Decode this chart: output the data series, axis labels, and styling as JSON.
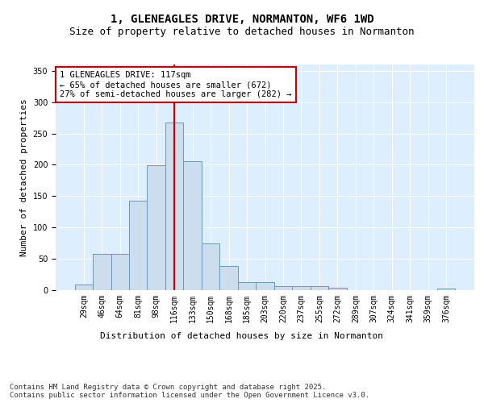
{
  "title_line1": "1, GLENEAGLES DRIVE, NORMANTON, WF6 1WD",
  "title_line2": "Size of property relative to detached houses in Normanton",
  "xlabel": "Distribution of detached houses by size in Normanton",
  "ylabel": "Number of detached properties",
  "bar_labels": [
    "29sqm",
    "46sqm",
    "64sqm",
    "81sqm",
    "98sqm",
    "116sqm",
    "133sqm",
    "150sqm",
    "168sqm",
    "185sqm",
    "203sqm",
    "220sqm",
    "237sqm",
    "255sqm",
    "272sqm",
    "289sqm",
    "307sqm",
    "324sqm",
    "341sqm",
    "359sqm",
    "376sqm"
  ],
  "bar_values": [
    9,
    58,
    58,
    143,
    199,
    267,
    206,
    74,
    39,
    13,
    13,
    7,
    7,
    7,
    4,
    0,
    0,
    0,
    0,
    0,
    2
  ],
  "bar_color": "#ccdded",
  "bar_edge_color": "#6699bb",
  "background_color": "#ddeeff",
  "vline_color": "#cc0000",
  "vline_x_index": 5,
  "annotation_text": "1 GLENEAGLES DRIVE: 117sqm\n← 65% of detached houses are smaller (672)\n27% of semi-detached houses are larger (282) →",
  "annotation_box_color": "#ffffff",
  "annotation_box_edge": "#cc0000",
  "ylim": [
    0,
    360
  ],
  "yticks": [
    0,
    50,
    100,
    150,
    200,
    250,
    300,
    350
  ],
  "footer_text": "Contains HM Land Registry data © Crown copyright and database right 2025.\nContains public sector information licensed under the Open Government Licence v3.0.",
  "title_fontsize": 10,
  "subtitle_fontsize": 9,
  "axis_label_fontsize": 8,
  "tick_fontsize": 7,
  "annotation_fontsize": 7.5,
  "footer_fontsize": 6.5
}
